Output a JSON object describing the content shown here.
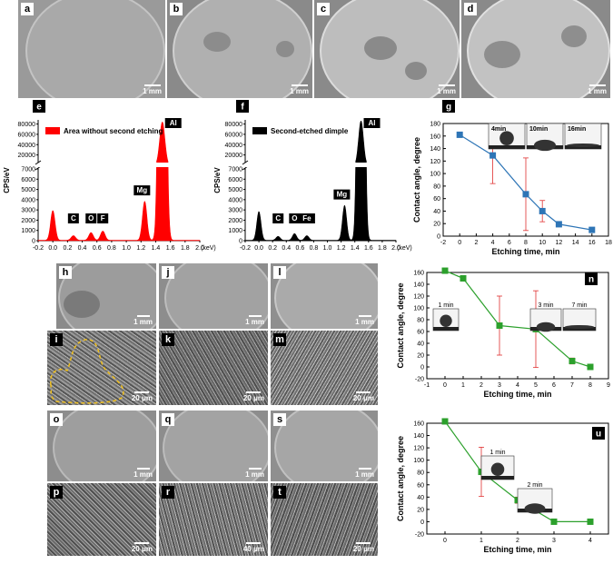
{
  "sem_panels": {
    "a": {
      "label": "a",
      "scale": "1 mm"
    },
    "b": {
      "label": "b",
      "scale": "1 mm"
    },
    "c": {
      "label": "c",
      "scale": "1 mm"
    },
    "d": {
      "label": "d",
      "scale": "1 mm"
    },
    "h": {
      "label": "h",
      "scale": "1 mm"
    },
    "j": {
      "label": "j",
      "scale": "1 mm"
    },
    "l": {
      "label": "l",
      "scale": "1 mm"
    },
    "i": {
      "label": "i",
      "scale": "20 μm"
    },
    "k": {
      "label": "k",
      "scale": "20 μm"
    },
    "m": {
      "label": "m",
      "scale": "20 μm"
    },
    "o": {
      "label": "o",
      "scale": "1 mm"
    },
    "q": {
      "label": "q",
      "scale": "1 mm"
    },
    "s": {
      "label": "s",
      "scale": "1 mm"
    },
    "p": {
      "label": "p",
      "scale": "20 μm"
    },
    "r": {
      "label": "r",
      "scale": "40 μm"
    },
    "t": {
      "label": "t",
      "scale": "20 μm"
    }
  },
  "chart_data": [
    {
      "id": "e",
      "type": "area",
      "label": "e",
      "legend": "Area without second etching",
      "color": "#ff0000",
      "ylabel": "CPS/eV",
      "xunit": "(keV)",
      "xlim": [
        -0.2,
        2.0
      ],
      "xticks": [
        "-0.2",
        "0.0",
        "0.2",
        "0.4",
        "0.6",
        "0.8",
        "1.0",
        "1.2",
        "1.4",
        "1.6",
        "1.8",
        "2.0"
      ],
      "yticks_lower": [
        "0",
        "1000",
        "2000",
        "3000",
        "4000",
        "5000",
        "6000",
        "7000"
      ],
      "yticks_upper": [
        "20000",
        "40000",
        "60000",
        "80000"
      ],
      "peaks": [
        {
          "x": 0.0,
          "y": 2900,
          "label": ""
        },
        {
          "x": 0.28,
          "y": 450,
          "label": "C"
        },
        {
          "x": 0.52,
          "y": 750,
          "label": "O"
        },
        {
          "x": 0.68,
          "y": 900,
          "label": "F"
        },
        {
          "x": 1.25,
          "y": 3800,
          "label": "Mg"
        },
        {
          "x": 1.49,
          "y": 84000,
          "label": "Al"
        }
      ]
    },
    {
      "id": "f",
      "type": "area",
      "label": "f",
      "legend": "Second-etched dimple",
      "color": "#000000",
      "ylabel": "CPS/eV",
      "xunit": "(keV)",
      "xlim": [
        -0.2,
        2.0
      ],
      "xticks": [
        "-0.2",
        "0.0",
        "0.2",
        "0.4",
        "0.6",
        "0.8",
        "1.0",
        "1.2",
        "1.4",
        "1.6",
        "1.8",
        "2.0"
      ],
      "yticks_lower": [
        "0",
        "1000",
        "2000",
        "3000",
        "4000",
        "5000",
        "6000",
        "7000"
      ],
      "yticks_upper": [
        "20000",
        "40000",
        "60000",
        "80000"
      ],
      "peaks": [
        {
          "x": 0.0,
          "y": 2800,
          "label": ""
        },
        {
          "x": 0.28,
          "y": 380,
          "label": "C"
        },
        {
          "x": 0.52,
          "y": 650,
          "label": "O"
        },
        {
          "x": 0.7,
          "y": 450,
          "label": "Fe"
        },
        {
          "x": 1.25,
          "y": 3400,
          "label": "Mg"
        },
        {
          "x": 1.49,
          "y": 86000,
          "label": "Al"
        }
      ]
    },
    {
      "id": "g",
      "type": "line",
      "label": "g",
      "color": "#2e75b6",
      "marker": "square",
      "xlabel": "Etching time, min",
      "ylabel": "Contact angle, degree",
      "xlim": [
        -2,
        18
      ],
      "ylim": [
        0,
        180
      ],
      "xticks": [
        "-2",
        "0",
        "2",
        "4",
        "6",
        "8",
        "10",
        "12",
        "14",
        "16",
        "18"
      ],
      "yticks": [
        "0",
        "20",
        "40",
        "60",
        "80",
        "100",
        "120",
        "140",
        "160",
        "180"
      ],
      "x": [
        0,
        4,
        8,
        10,
        12,
        16
      ],
      "y": [
        162,
        129,
        67,
        40,
        19,
        10
      ],
      "err": [
        0,
        45,
        58,
        17,
        0,
        0
      ],
      "insets": [
        "4min",
        "10min",
        "16min"
      ]
    },
    {
      "id": "n",
      "type": "line",
      "label": "n",
      "color": "#2ca02c",
      "marker": "square",
      "xlabel": "Etching time, min",
      "ylabel": "Contact angle, degree",
      "xlim": [
        -1,
        9
      ],
      "ylim": [
        -20,
        160
      ],
      "xticks": [
        "-1",
        "0",
        "1",
        "2",
        "3",
        "4",
        "5",
        "6",
        "7",
        "8",
        "9"
      ],
      "yticks": [
        "-20",
        "0",
        "20",
        "40",
        "60",
        "80",
        "100",
        "120",
        "140",
        "160"
      ],
      "x": [
        0,
        1,
        3,
        5,
        7,
        8
      ],
      "y": [
        163,
        150,
        70,
        64,
        10,
        0
      ],
      "err": [
        0,
        0,
        50,
        65,
        5,
        0
      ],
      "insets": [
        "1 min",
        "3 min",
        "7 min"
      ]
    },
    {
      "id": "u",
      "type": "line",
      "label": "u",
      "color": "#2ca02c",
      "marker": "square",
      "xlabel": "Etching time, min",
      "ylabel": "Contact angle, degree",
      "xlim": [
        -0.5,
        4.5
      ],
      "ylim": [
        -20,
        160
      ],
      "xticks": [
        "0",
        "1",
        "2",
        "3",
        "4"
      ],
      "yticks": [
        "-20",
        "0",
        "20",
        "40",
        "60",
        "80",
        "100",
        "120",
        "140",
        "160"
      ],
      "x": [
        0,
        1,
        2,
        3,
        4
      ],
      "y": [
        163,
        81,
        35,
        0,
        0
      ],
      "err": [
        0,
        40,
        5,
        0,
        0
      ],
      "insets": [
        "1 min",
        "2 min"
      ]
    }
  ]
}
